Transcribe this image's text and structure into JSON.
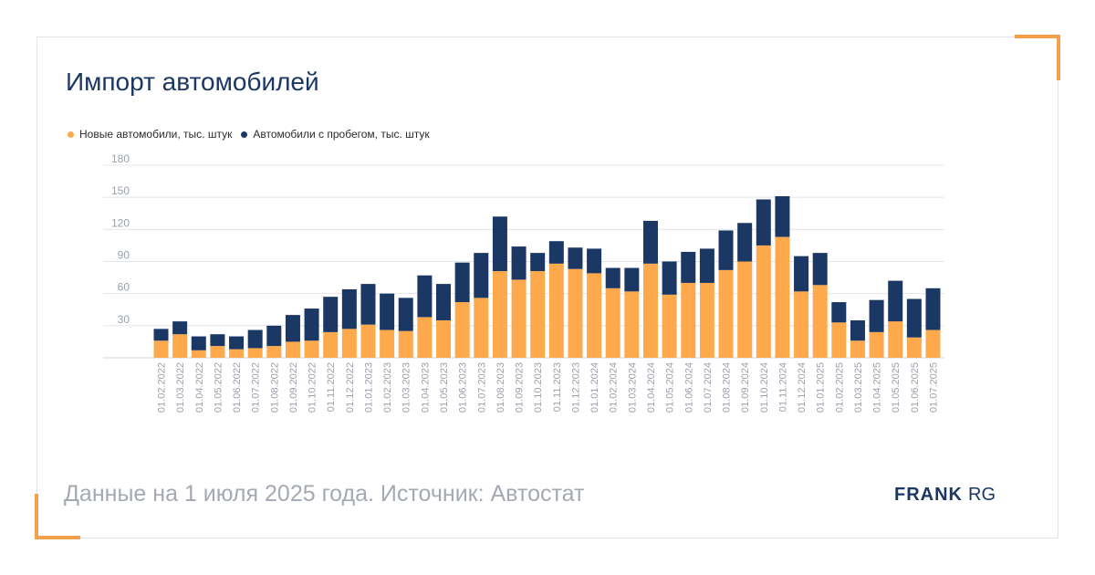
{
  "header": {
    "title": "Импорт автомобилей"
  },
  "footer": {
    "note": "Данные на 1 июля 2025 года. Источник: Автостат"
  },
  "brand": {
    "primary": "FRANK",
    "secondary": "RG"
  },
  "colors": {
    "new": "#ffa94d",
    "used": "#1b3764",
    "accent": "#f5a04b",
    "grid": "#e2e4ec"
  },
  "chart_data": {
    "type": "bar",
    "stacked": true,
    "title": "Импорт автомобилей",
    "xlabel": "",
    "ylabel": "",
    "ylim": [
      0,
      180
    ],
    "yticks": [
      30,
      60,
      90,
      120,
      150,
      180
    ],
    "grid": true,
    "legend_position": "top-left",
    "categories": [
      "01.02.2022",
      "01.03.2022",
      "01.04.2022",
      "01.05.2022",
      "01.06.2022",
      "01.07.2022",
      "01.08.2022",
      "01.09.2022",
      "01.10.2022",
      "01.11.2022",
      "01.12.2022",
      "01.01.2023",
      "01.02.2023",
      "01.03.2023",
      "01.04.2023",
      "01.05.2023",
      "01.06.2023",
      "01.07.2023",
      "01.08.2023",
      "01.09.2023",
      "01.10.2023",
      "01.11.2023",
      "01.12.2023",
      "01.01.2024",
      "01.02.2024",
      "01.03.2024",
      "01.04.2024",
      "01.05.2024",
      "01.06.2024",
      "01.07.2024",
      "01.08.2024",
      "01.09.2024",
      "01.10.2024",
      "01.11.2024",
      "01.12.2024",
      "01.01.2025",
      "01.02.2025",
      "01.03.2025",
      "01.04.2025",
      "01.05.2025",
      "01.06.2025",
      "01.07.2025"
    ],
    "series": [
      {
        "name": "Новые автомобили, тыс. штук",
        "color": "#ffa94d",
        "values": [
          16,
          22,
          7,
          11,
          8,
          9,
          11,
          15,
          16,
          24,
          27,
          31,
          26,
          25,
          38,
          35,
          52,
          56,
          81,
          73,
          81,
          88,
          83,
          79,
          65,
          62,
          88,
          59,
          70,
          70,
          82,
          90,
          105,
          113,
          62,
          68,
          33,
          16,
          24,
          34,
          19,
          26
        ]
      },
      {
        "name": "Автомобили с пробегом, тыс. штук",
        "color": "#1b3764",
        "values": [
          11,
          12,
          13,
          11,
          12,
          17,
          19,
          25,
          30,
          33,
          37,
          38,
          34,
          31,
          39,
          34,
          37,
          42,
          51,
          31,
          17,
          21,
          20,
          23,
          19,
          22,
          40,
          31,
          29,
          32,
          37,
          36,
          43,
          38,
          33,
          30,
          19,
          19,
          30,
          38,
          36,
          39
        ]
      }
    ]
  }
}
